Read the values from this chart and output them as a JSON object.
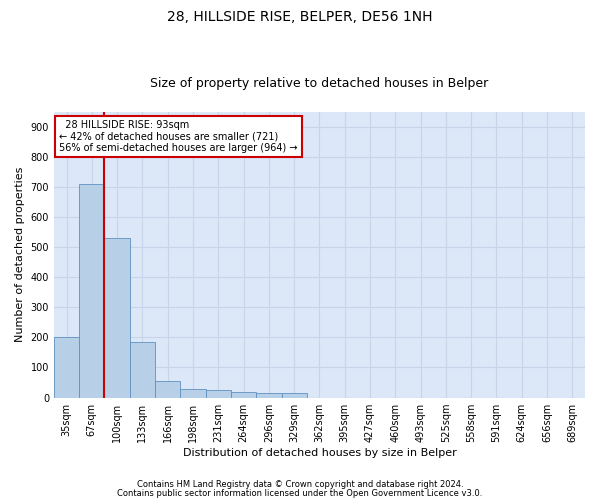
{
  "title_line1": "28, HILLSIDE RISE, BELPER, DE56 1NH",
  "title_line2": "Size of property relative to detached houses in Belper",
  "xlabel": "Distribution of detached houses by size in Belper",
  "ylabel": "Number of detached properties",
  "footnote1": "Contains HM Land Registry data © Crown copyright and database right 2024.",
  "footnote2": "Contains public sector information licensed under the Open Government Licence v3.0.",
  "annotation_line1": "28 HILLSIDE RISE: 93sqm",
  "annotation_line2": "← 42% of detached houses are smaller (721)",
  "annotation_line3": "56% of semi-detached houses are larger (964) →",
  "bar_labels": [
    "35sqm",
    "67sqm",
    "100sqm",
    "133sqm",
    "166sqm",
    "198sqm",
    "231sqm",
    "264sqm",
    "296sqm",
    "329sqm",
    "362sqm",
    "395sqm",
    "427sqm",
    "460sqm",
    "493sqm",
    "525sqm",
    "558sqm",
    "591sqm",
    "624sqm",
    "656sqm",
    "689sqm"
  ],
  "bar_values": [
    200,
    710,
    530,
    185,
    55,
    30,
    25,
    20,
    15,
    15,
    0,
    0,
    0,
    0,
    0,
    0,
    0,
    0,
    0,
    0,
    0
  ],
  "bar_color": "#b8cfe8",
  "bar_edge_color": "#6090c0",
  "vline_x_index": 1.5,
  "vline_color": "#cc0000",
  "ylim": [
    0,
    950
  ],
  "yticks": [
    0,
    100,
    200,
    300,
    400,
    500,
    600,
    700,
    800,
    900
  ],
  "grid_color": "#c8d4e8",
  "bg_color": "#dce8f8",
  "title_fontsize": 10,
  "subtitle_fontsize": 9,
  "xlabel_fontsize": 8,
  "ylabel_fontsize": 8,
  "annotation_fontsize": 7,
  "tick_fontsize": 7
}
